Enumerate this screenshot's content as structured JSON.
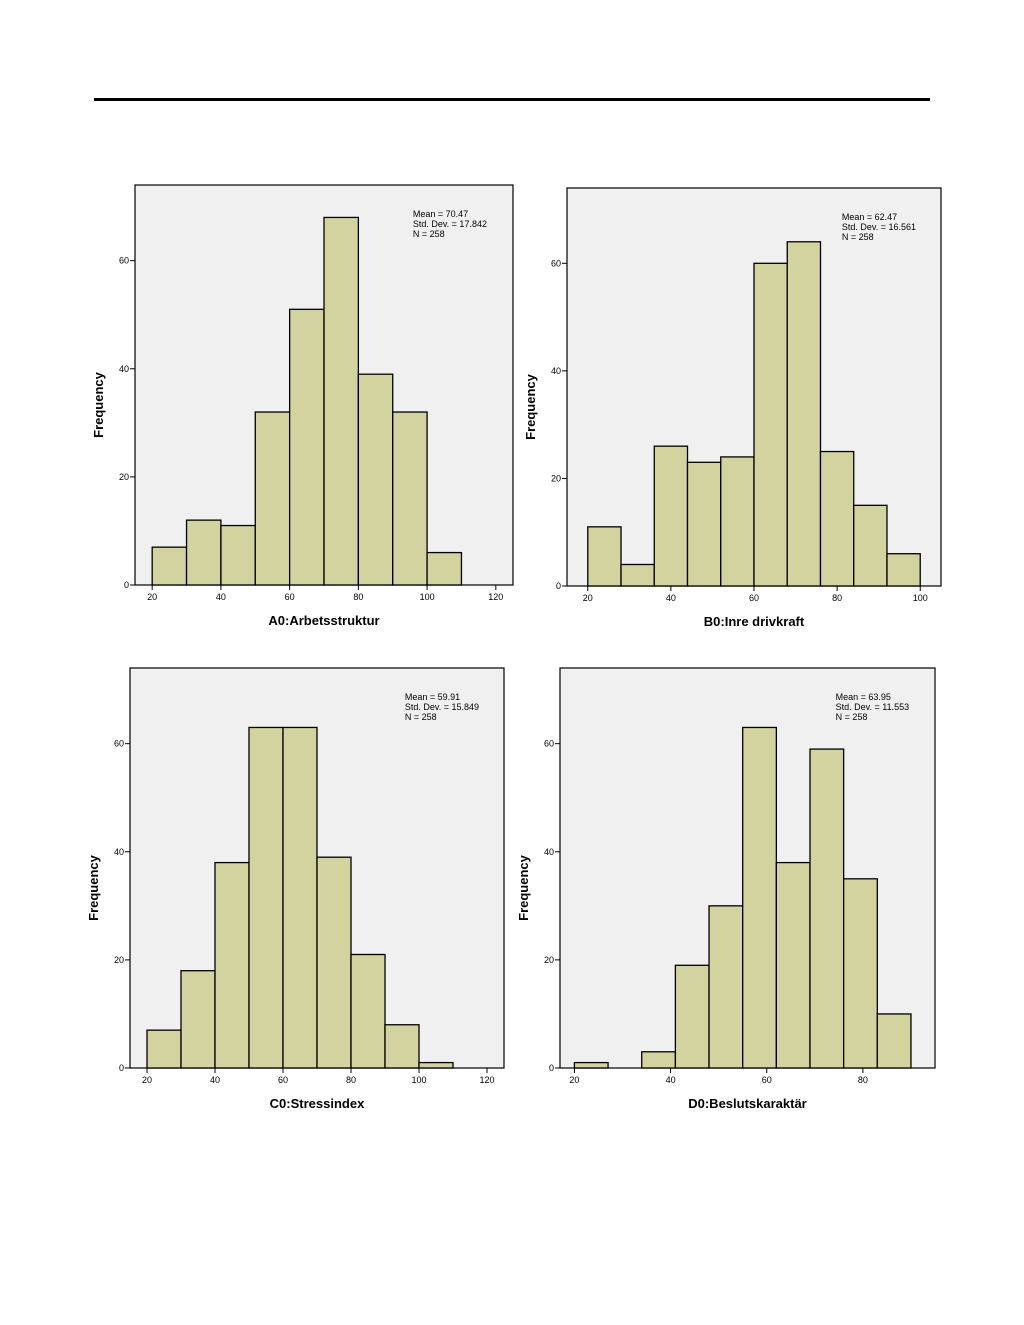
{
  "style": {
    "bar_fill": "#d3d3a0",
    "plot_bg": "#f0f0f0",
    "stroke": "#000000"
  },
  "chart_data": [
    {
      "type": "bar",
      "xlabel": "A0:Arbetsstruktur",
      "ylabel": "Frequency",
      "xlim": [
        15,
        125
      ],
      "ylim": [
        0,
        74
      ],
      "xticks": [
        20,
        40,
        60,
        80,
        100,
        120
      ],
      "yticks": [
        0,
        20,
        40,
        60
      ],
      "bin_width": 10,
      "bins": [
        20,
        30,
        40,
        50,
        60,
        70,
        80,
        90,
        100
      ],
      "values": [
        7,
        12,
        11,
        32,
        51,
        68,
        39,
        32,
        6
      ],
      "stats": [
        "Mean = 70.47",
        "Std. Dev. = 17.842",
        "N = 258"
      ]
    },
    {
      "type": "bar",
      "xlabel": "B0:Inre drivkraft",
      "ylabel": "Frequency",
      "xlim": [
        15,
        105
      ],
      "ylim": [
        0,
        74
      ],
      "xticks": [
        20,
        40,
        60,
        80,
        100
      ],
      "yticks": [
        0,
        20,
        40,
        60
      ],
      "bin_width": 8,
      "bins": [
        20,
        28,
        36,
        44,
        52,
        60,
        68,
        76,
        84,
        92
      ],
      "values": [
        11,
        4,
        26,
        23,
        24,
        60,
        64,
        25,
        15,
        6
      ],
      "stats": [
        "Mean = 62.47",
        "Std. Dev. = 16.561",
        "N = 258"
      ]
    },
    {
      "type": "bar",
      "xlabel": "C0:Stressindex",
      "ylabel": "Frequency",
      "xlim": [
        15,
        125
      ],
      "ylim": [
        0,
        74
      ],
      "xticks": [
        20,
        40,
        60,
        80,
        100,
        120
      ],
      "yticks": [
        0,
        20,
        40,
        60
      ],
      "bin_width": 10,
      "bins": [
        20,
        30,
        40,
        50,
        60,
        70,
        80,
        90,
        100
      ],
      "values": [
        7,
        18,
        38,
        63,
        63,
        39,
        21,
        8,
        1
      ],
      "stats": [
        "Mean = 59.91",
        "Std. Dev. = 15.849",
        "N = 258"
      ]
    },
    {
      "type": "bar",
      "xlabel": "D0:Beslutskaraktär",
      "ylabel": "Frequency",
      "xlim": [
        17,
        95
      ],
      "ylim": [
        0,
        74
      ],
      "xticks": [
        20,
        40,
        60,
        80
      ],
      "yticks": [
        0,
        20,
        40,
        60
      ],
      "bin_width": 7,
      "bins": [
        20,
        27,
        34,
        41,
        48,
        55,
        62,
        69,
        76,
        83
      ],
      "values": [
        1,
        0,
        3,
        19,
        30,
        63,
        38,
        59,
        35,
        10
      ],
      "stats": [
        "Mean = 63.95",
        "Std. Dev. = 11.553",
        "N = 258"
      ]
    }
  ]
}
